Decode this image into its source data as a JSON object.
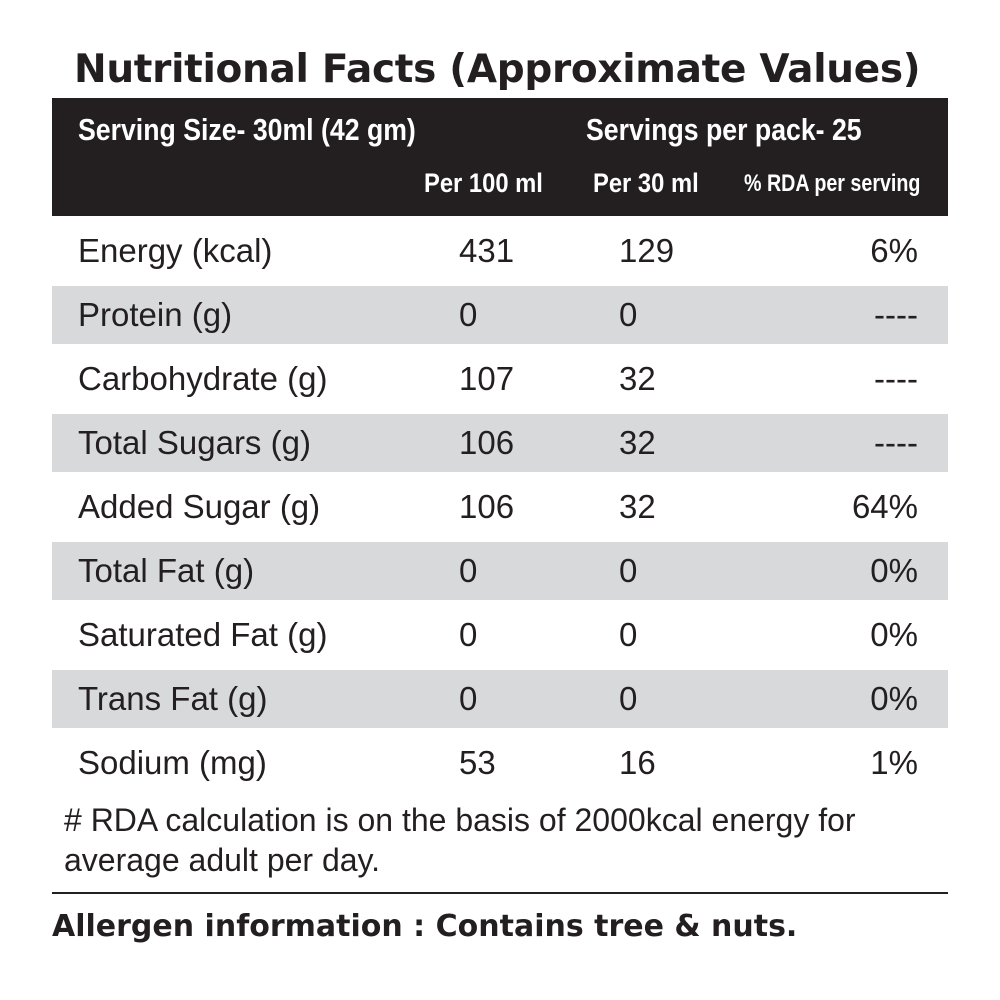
{
  "title": "Nutritional Facts (Approximate Values)",
  "header": {
    "serving_size": "Serving Size-  30ml (42 gm)",
    "servings_per_pack": "Servings per pack- 25",
    "col_per_100": "Per 100 ml",
    "col_per_30": "Per 30 ml",
    "col_rda": "% RDA per serving"
  },
  "rows": [
    {
      "name": "Energy (kcal)",
      "per100": "431",
      "per30": "129",
      "rda": "6%"
    },
    {
      "name": "Protein (g)",
      "per100": "0",
      "per30": "0",
      "rda": "----"
    },
    {
      "name": "Carbohydrate (g)",
      "per100": "107",
      "per30": "32",
      "rda": "----"
    },
    {
      "name": "Total Sugars (g)",
      "per100": "106",
      "per30": "32",
      "rda": "----"
    },
    {
      "name": "Added Sugar (g)",
      "per100": "106",
      "per30": "32",
      "rda": "64%"
    },
    {
      "name": "Total Fat (g)",
      "per100": "0",
      "per30": "0",
      "rda": "0%"
    },
    {
      "name": "Saturated Fat (g)",
      "per100": "0",
      "per30": "0",
      "rda": "0%"
    },
    {
      "name": "Trans Fat (g)",
      "per100": "0",
      "per30": "0",
      "rda": "0%"
    },
    {
      "name": "Sodium (mg)",
      "per100": "53",
      "per30": "16",
      "rda": "1%"
    }
  ],
  "footnote": "# RDA calculation is on the basis of 2000kcal energy for average adult per day.",
  "allergen": "Allergen information : Contains tree & nuts.",
  "colors": {
    "header_bg": "#231f20",
    "shaded_row": "#d8d9db",
    "text": "#231f20"
  }
}
